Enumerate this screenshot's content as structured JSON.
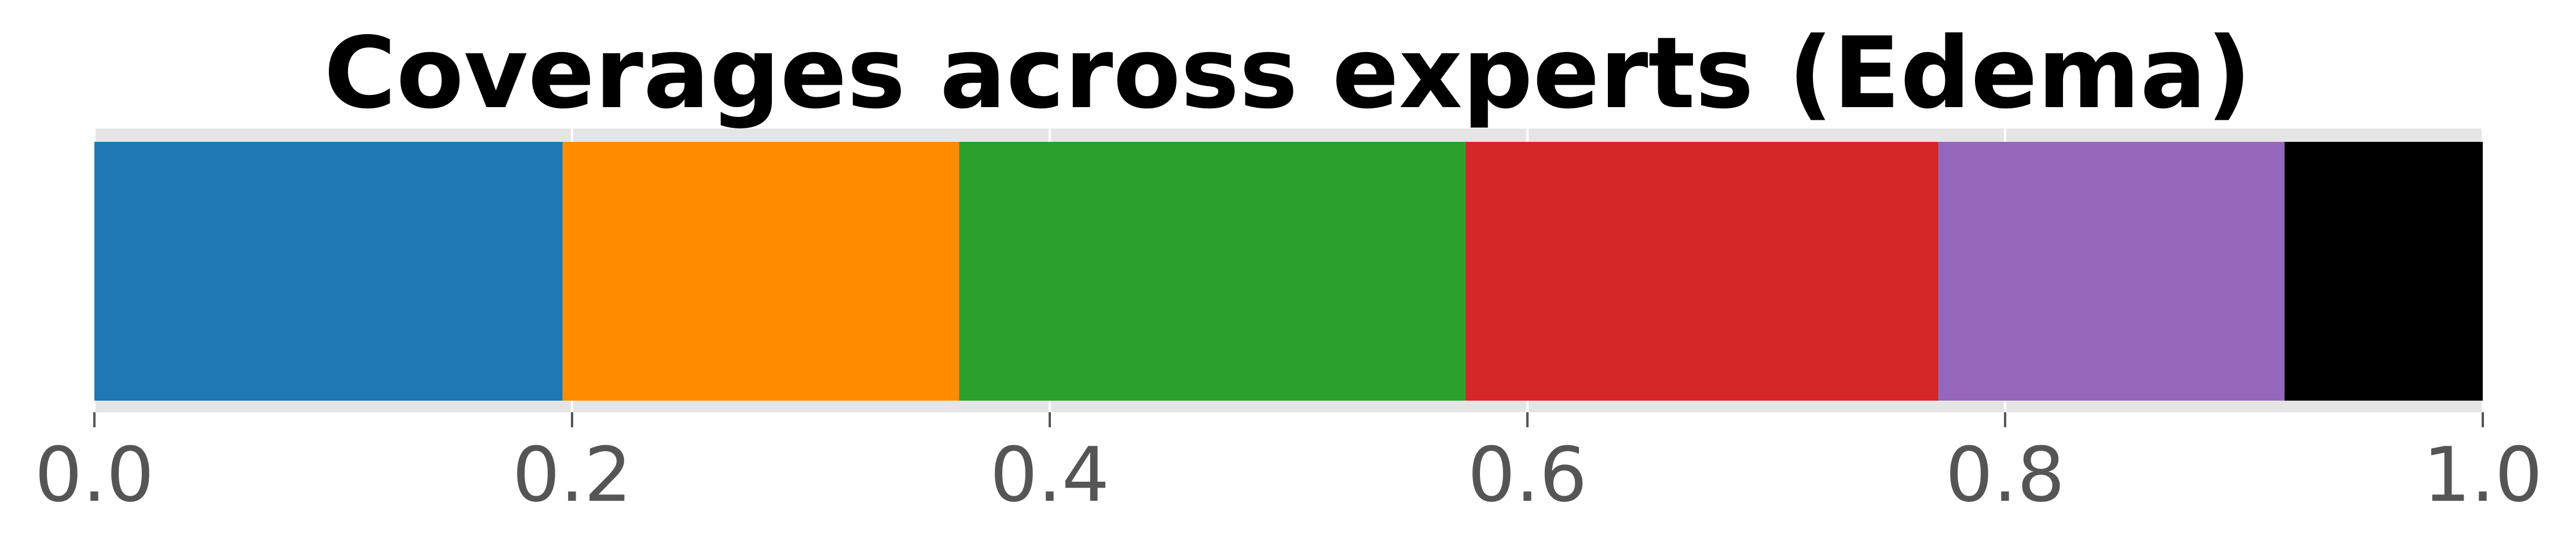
{
  "chart_data": {
    "type": "bar",
    "orientation": "horizontal-stacked",
    "title": "Coverages across experts (Edema)",
    "xlabel": "",
    "ylabel": "",
    "xlim": [
      0.0,
      1.0
    ],
    "xticks": [
      "0.0",
      "0.2",
      "0.4",
      "0.6",
      "0.8",
      "1.0"
    ],
    "grid": true,
    "legend": "none",
    "segments": [
      {
        "start": 0.0,
        "end": 0.196,
        "color": "#1f77b4"
      },
      {
        "start": 0.196,
        "end": 0.362,
        "color": "#ff8c00"
      },
      {
        "start": 0.362,
        "end": 0.574,
        "color": "#2ca02c"
      },
      {
        "start": 0.574,
        "end": 0.772,
        "color": "#d62728"
      },
      {
        "start": 0.772,
        "end": 0.917,
        "color": "#9467bd"
      },
      {
        "start": 0.917,
        "end": 1.0,
        "color": "#000000"
      }
    ],
    "colors": {
      "plot_background": "#e5e5e5",
      "grid": "#ffffff",
      "tick_label": "#555555"
    }
  }
}
